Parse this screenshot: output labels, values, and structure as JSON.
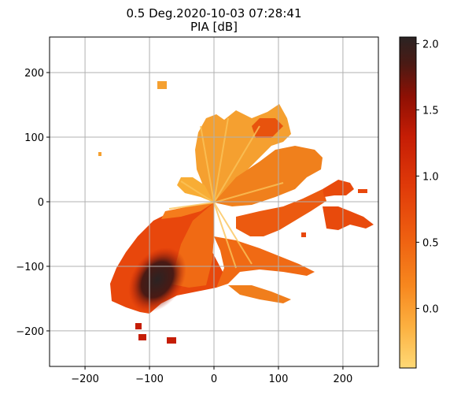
{
  "chart_data": {
    "type": "heatmap",
    "title_line1": "0.5 Deg.2020-10-03 07:28:41",
    "title_line2": "PIA [dB]",
    "xlabel": "",
    "ylabel": "",
    "xlim": [
      -255,
      255
    ],
    "ylim": [
      -255,
      255
    ],
    "x_ticks": [
      -200,
      -100,
      0,
      100,
      200
    ],
    "y_ticks": [
      -200,
      -100,
      0,
      100,
      200
    ],
    "grid": true,
    "colorbar": {
      "range": [
        -0.45,
        2.05
      ],
      "ticks": [
        0.0,
        0.5,
        1.0,
        1.5,
        2.0
      ],
      "tick_labels": [
        "0.0",
        "0.5",
        "1.0",
        "1.5",
        "2.0"
      ],
      "colormap": [
        "#fed976",
        "#fcb040",
        "#f7871e",
        "#ee5e10",
        "#e03a09",
        "#c51d05",
        "#8e1004",
        "#4a1a14",
        "#2b2323"
      ]
    },
    "radar_origin_km": [
      0,
      0
    ],
    "description_regions": [
      {
        "name": "south-west core",
        "approx_center_km": [
          -85,
          -120
        ],
        "value": 2.0
      },
      {
        "name": "south-west band",
        "approx_center_km": [
          -60,
          -60
        ],
        "value": 1.1
      },
      {
        "name": "north sector",
        "approx_center_km": [
          40,
          110
        ],
        "value": 0.3
      },
      {
        "name": "east band",
        "approx_center_km": [
          130,
          40
        ],
        "value": 0.7
      },
      {
        "name": "far east echoes",
        "approx_center_km": [
          200,
          -20
        ],
        "value": 1.0
      },
      {
        "name": "south band",
        "approx_center_km": [
          100,
          -100
        ],
        "value": 0.8
      }
    ]
  }
}
